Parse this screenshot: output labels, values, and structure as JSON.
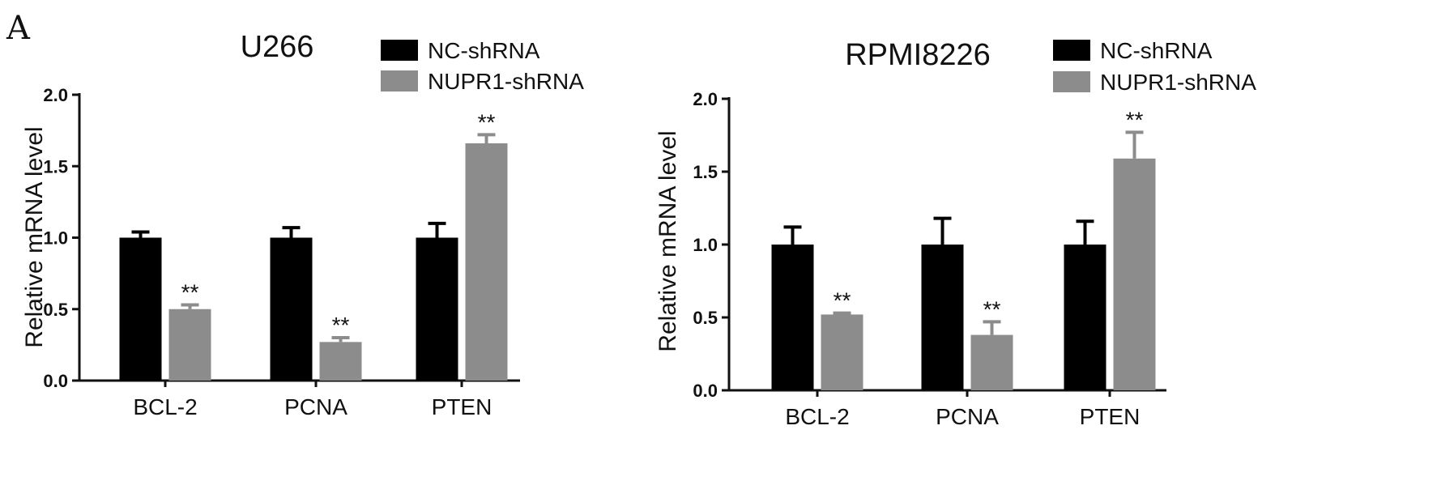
{
  "panel_label": "A",
  "colors": {
    "nc": "#000000",
    "nupr1": "#8c8c8c",
    "axis": "#111111"
  },
  "chart_data": [
    {
      "type": "bar",
      "title": "U266",
      "xlabel": "",
      "ylabel": "Relative mRNA level",
      "categories": [
        "BCL-2",
        "PCNA",
        "PTEN"
      ],
      "ylim": [
        0,
        2.0
      ],
      "yticks": [
        "0.0",
        "0.5",
        "1.0",
        "1.5",
        "2.0"
      ],
      "legend_position": "top-right",
      "series": [
        {
          "name": "NC-shRNA",
          "values": [
            1.0,
            1.0,
            1.0
          ],
          "errors": [
            0.04,
            0.07,
            0.1
          ],
          "annotations": [
            "",
            "",
            ""
          ]
        },
        {
          "name": "NUPR1-shRNA",
          "values": [
            0.5,
            0.27,
            1.66
          ],
          "errors": [
            0.03,
            0.03,
            0.06
          ],
          "annotations": [
            "**",
            "**",
            "**"
          ]
        }
      ]
    },
    {
      "type": "bar",
      "title": "RPMI8226",
      "xlabel": "",
      "ylabel": "Relative mRNA level",
      "categories": [
        "BCL-2",
        "PCNA",
        "PTEN"
      ],
      "ylim": [
        0,
        2.0
      ],
      "yticks": [
        "0.0",
        "0.5",
        "1.0",
        "1.5",
        "2.0"
      ],
      "legend_position": "top-right",
      "series": [
        {
          "name": "NC-shRNA",
          "values": [
            1.0,
            1.0,
            1.0
          ],
          "errors": [
            0.12,
            0.18,
            0.16
          ],
          "annotations": [
            "",
            "",
            ""
          ]
        },
        {
          "name": "NUPR1-shRNA",
          "values": [
            0.52,
            0.38,
            1.59
          ],
          "errors": [
            0.01,
            0.09,
            0.18
          ],
          "annotations": [
            "**",
            "**",
            "**"
          ]
        }
      ]
    }
  ]
}
